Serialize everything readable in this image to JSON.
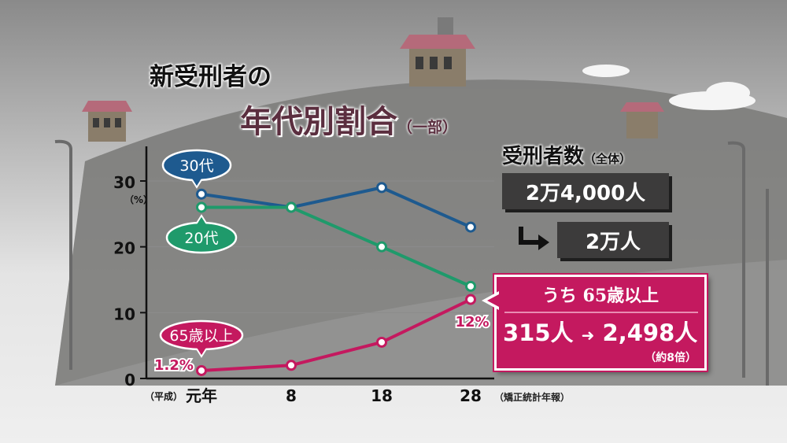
{
  "title_line1": "新受刑者の",
  "title_line2": "年代別割合",
  "title_suffix": "（一部）",
  "source_note": "（矯正統計年報）",
  "colors": {
    "age30": "#1e5a8f",
    "age20": "#1f9a6b",
    "age65": "#c4195f",
    "grid": "#8c8c8c"
  },
  "inmates_total": {
    "label": "受刑者数",
    "label_suffix": "（全体）",
    "from": "2万4,000人",
    "to": "2万人"
  },
  "over65_box": {
    "heading": "うち 65歳以上",
    "from": "315人",
    "to": "2,498人",
    "note": "（約8倍）"
  },
  "chart_data": {
    "type": "line",
    "x_prefix": "（平成）",
    "categories": [
      "元年",
      "8",
      "18",
      "28"
    ],
    "x_positions": [
      1,
      8,
      18,
      28
    ],
    "ylim": [
      0,
      30
    ],
    "yticks": [
      "0",
      "10",
      "20",
      "30"
    ],
    "ylabel": "（%）",
    "grid": true,
    "series": [
      {
        "name": "30代",
        "values": [
          28,
          26,
          29,
          23
        ]
      },
      {
        "name": "20代",
        "values": [
          26,
          26,
          20,
          14
        ]
      },
      {
        "name": "65歳以上",
        "values": [
          1.2,
          2,
          5.5,
          12
        ]
      }
    ],
    "data_labels": [
      "1.2%",
      "12%"
    ]
  }
}
